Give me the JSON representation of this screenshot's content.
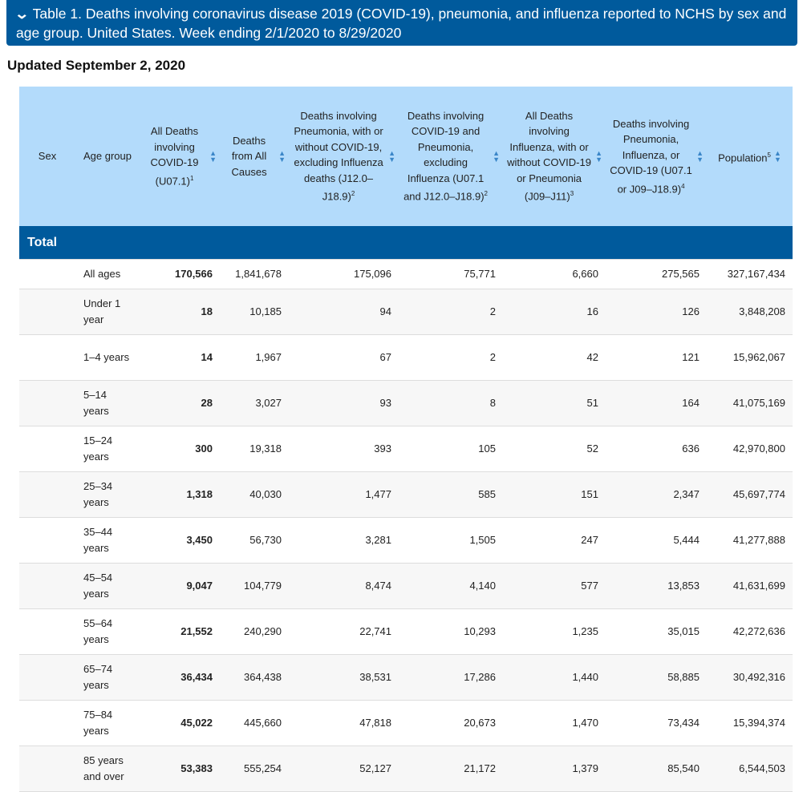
{
  "title": "Table 1. Deaths involving coronavirus disease 2019 (COVID-19), pneumonia, and influenza reported to NCHS by sex and age group. United States. Week ending 2/1/2020 to 8/29/2020",
  "updated": "Updated September 2, 2020",
  "colors": {
    "title_bg": "#005a9c",
    "header_bg": "#b3dbfb",
    "section_bg": "#005a9c",
    "sort_icon": "#3a86c8"
  },
  "columns": [
    {
      "label": "Sex",
      "sup": "",
      "sortable": false
    },
    {
      "label": "Age group",
      "sup": "",
      "sortable": false
    },
    {
      "label": "All Deaths involving COVID-19 (U07.1)",
      "sup": "1",
      "sortable": true
    },
    {
      "label": "Deaths from All Causes",
      "sup": "",
      "sortable": true
    },
    {
      "label": "Deaths involving Pneumonia, with or without COVID-19, excluding Influenza deaths (J12.0–J18.9)",
      "sup": "2",
      "sortable": true
    },
    {
      "label": "Deaths involving COVID-19 and Pneumonia, excluding Influenza (U07.1 and J12.0–J18.9)",
      "sup": "2",
      "sortable": true
    },
    {
      "label": "All Deaths involving Influenza, with or without COVID-19 or Pneumonia (J09–J11)",
      "sup": "3",
      "sortable": true
    },
    {
      "label": "Deaths involving Pneumonia, Influenza, or COVID-19 (U07.1 or J09–J18.9)",
      "sup": "4",
      "sortable": true
    },
    {
      "label": "Population",
      "sup": "5",
      "sortable": true
    }
  ],
  "section": "Total",
  "rows": [
    {
      "sex": "",
      "age": "All ages",
      "values": [
        "170,566",
        "1,841,678",
        "175,096",
        "75,771",
        "6,660",
        "275,565",
        "327,167,434"
      ]
    },
    {
      "sex": "",
      "age": "Under 1 year",
      "values": [
        "18",
        "10,185",
        "94",
        "2",
        "16",
        "126",
        "3,848,208"
      ]
    },
    {
      "sex": "",
      "age": "1–4 years",
      "values": [
        "14",
        "1,967",
        "67",
        "2",
        "42",
        "121",
        "15,962,067"
      ]
    },
    {
      "sex": "",
      "age": "5–14 years",
      "values": [
        "28",
        "3,027",
        "93",
        "8",
        "51",
        "164",
        "41,075,169"
      ]
    },
    {
      "sex": "",
      "age": "15–24 years",
      "values": [
        "300",
        "19,318",
        "393",
        "105",
        "52",
        "636",
        "42,970,800"
      ]
    },
    {
      "sex": "",
      "age": "25–34 years",
      "values": [
        "1,318",
        "40,030",
        "1,477",
        "585",
        "151",
        "2,347",
        "45,697,774"
      ]
    },
    {
      "sex": "",
      "age": "35–44 years",
      "values": [
        "3,450",
        "56,730",
        "3,281",
        "1,505",
        "247",
        "5,444",
        "41,277,888"
      ]
    },
    {
      "sex": "",
      "age": "45–54 years",
      "values": [
        "9,047",
        "104,779",
        "8,474",
        "4,140",
        "577",
        "13,853",
        "41,631,699"
      ]
    },
    {
      "sex": "",
      "age": "55–64 years",
      "values": [
        "21,552",
        "240,290",
        "22,741",
        "10,293",
        "1,235",
        "35,015",
        "42,272,636"
      ]
    },
    {
      "sex": "",
      "age": "65–74 years",
      "values": [
        "36,434",
        "364,438",
        "38,531",
        "17,286",
        "1,440",
        "58,885",
        "30,492,316"
      ]
    },
    {
      "sex": "",
      "age": "75–84 years",
      "values": [
        "45,022",
        "445,660",
        "47,818",
        "20,673",
        "1,470",
        "73,434",
        "15,394,374"
      ]
    },
    {
      "sex": "",
      "age": "85 years and over",
      "values": [
        "53,383",
        "555,254",
        "52,127",
        "21,172",
        "1,379",
        "85,540",
        "6,544,503"
      ]
    }
  ]
}
